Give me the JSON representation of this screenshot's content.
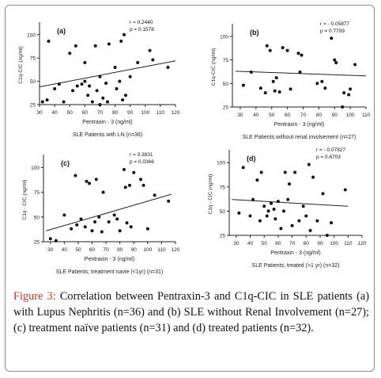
{
  "figure": {
    "label": "Figure 3:",
    "text": " Correlation between Pentraxin-3 and C1q-CIC in SLE patients (a) with Lupus Nephritis (n=36) and (b) SLE without Renal Involvement (n=27); (c) treatment naïve patients (n=31) and (d) treated patients (n=32).",
    "colors": {
      "label": "#c0392b",
      "points": "#111111",
      "regression": "#222222"
    }
  },
  "chart_data": [
    {
      "type": "scatter",
      "panel_label": "(a)",
      "stats": [
        "r = 0.2440",
        "p = 0.1578"
      ],
      "xlabel": "Pentraxin - 3 (ng/ml)",
      "ylabel": "C1q-CIC (ng/ml)",
      "footer": "SLE Patients with LN (n=36)",
      "xlim": [
        30,
        120
      ],
      "ylim": [
        25,
        110
      ],
      "xticks": [
        30,
        40,
        50,
        60,
        70,
        80,
        90,
        100,
        110,
        120
      ],
      "yticks": [
        25,
        50,
        75,
        100
      ],
      "regression": {
        "x": [
          30,
          120
        ],
        "y": [
          44,
          72
        ]
      },
      "points": [
        {
          "x": 32,
          "y": 28
        },
        {
          "x": 35,
          "y": 30
        },
        {
          "x": 36,
          "y": 93
        },
        {
          "x": 40,
          "y": 42
        },
        {
          "x": 43,
          "y": 47
        },
        {
          "x": 46,
          "y": 28
        },
        {
          "x": 50,
          "y": 80
        },
        {
          "x": 52,
          "y": 40
        },
        {
          "x": 54,
          "y": 88
        },
        {
          "x": 55,
          "y": 45
        },
        {
          "x": 58,
          "y": 47
        },
        {
          "x": 60,
          "y": 50
        },
        {
          "x": 60,
          "y": 70
        },
        {
          "x": 62,
          "y": 35
        },
        {
          "x": 63,
          "y": 45
        },
        {
          "x": 65,
          "y": 28
        },
        {
          "x": 67,
          "y": 88
        },
        {
          "x": 68,
          "y": 40
        },
        {
          "x": 70,
          "y": 55
        },
        {
          "x": 70,
          "y": 25
        },
        {
          "x": 72,
          "y": 32
        },
        {
          "x": 74,
          "y": 48
        },
        {
          "x": 75,
          "y": 28
        },
        {
          "x": 76,
          "y": 90
        },
        {
          "x": 80,
          "y": 65
        },
        {
          "x": 81,
          "y": 42
        },
        {
          "x": 83,
          "y": 50
        },
        {
          "x": 84,
          "y": 93
        },
        {
          "x": 85,
          "y": 30
        },
        {
          "x": 86,
          "y": 100
        },
        {
          "x": 87,
          "y": 35
        },
        {
          "x": 90,
          "y": 55
        },
        {
          "x": 95,
          "y": 70
        },
        {
          "x": 103,
          "y": 83
        },
        {
          "x": 105,
          "y": 73
        },
        {
          "x": 115,
          "y": 65
        }
      ]
    },
    {
      "type": "scatter",
      "panel_label": "(b)",
      "stats": [
        "r = - 0.05877",
        "p = 0.7709"
      ],
      "xlabel": "Pentraxin - 3 (ng/ml)",
      "ylabel": "C1q-CIC (ng/ml)",
      "footer": "SLE Patients without renal involvement (n=27)",
      "xlim": [
        25,
        110
      ],
      "ylim": [
        25,
        110
      ],
      "xticks": [
        30,
        40,
        50,
        60,
        70,
        80,
        90,
        100,
        110
      ],
      "yticks": [
        25,
        50,
        75,
        100
      ],
      "regression": {
        "x": [
          27,
          110
        ],
        "y": [
          63,
          58
        ]
      },
      "points": [
        {
          "x": 32,
          "y": 48
        },
        {
          "x": 37,
          "y": 62
        },
        {
          "x": 43,
          "y": 45
        },
        {
          "x": 46,
          "y": 40
        },
        {
          "x": 47,
          "y": 90
        },
        {
          "x": 49,
          "y": 85
        },
        {
          "x": 51,
          "y": 52
        },
        {
          "x": 52,
          "y": 42
        },
        {
          "x": 53,
          "y": 56
        },
        {
          "x": 55,
          "y": 41
        },
        {
          "x": 57,
          "y": 88
        },
        {
          "x": 60,
          "y": 85
        },
        {
          "x": 62,
          "y": 44
        },
        {
          "x": 67,
          "y": 82
        },
        {
          "x": 68,
          "y": 62
        },
        {
          "x": 69,
          "y": 80
        },
        {
          "x": 79,
          "y": 50
        },
        {
          "x": 82,
          "y": 52
        },
        {
          "x": 84,
          "y": 45
        },
        {
          "x": 88,
          "y": 98
        },
        {
          "x": 90,
          "y": 75
        },
        {
          "x": 91,
          "y": 72
        },
        {
          "x": 95,
          "y": 25
        },
        {
          "x": 96,
          "y": 40
        },
        {
          "x": 99,
          "y": 38
        },
        {
          "x": 103,
          "y": 70
        },
        {
          "x": 100,
          "y": 44
        }
      ]
    },
    {
      "type": "scatter",
      "panel_label": "(c)",
      "stats": [
        "r = 0.3831",
        "p = 0.0366"
      ],
      "xlabel": "Pentraxin - 3 (ng/ml)",
      "ylabel": "C1q - CIC (ng/ml)",
      "footer": "SLE Patients; treatment navie (<1yr) (n=31)",
      "xlim": [
        25,
        120
      ],
      "ylim": [
        25,
        110
      ],
      "xticks": [
        30,
        40,
        50,
        60,
        70,
        80,
        90,
        100,
        110,
        120
      ],
      "yticks": [
        25,
        50,
        75,
        100
      ],
      "regression": {
        "x": [
          27,
          117
        ],
        "y": [
          36,
          73
        ]
      },
      "points": [
        {
          "x": 30,
          "y": 28
        },
        {
          "x": 34,
          "y": 26
        },
        {
          "x": 40,
          "y": 52
        },
        {
          "x": 45,
          "y": 38
        },
        {
          "x": 48,
          "y": 92
        },
        {
          "x": 49,
          "y": 42
        },
        {
          "x": 52,
          "y": 48
        },
        {
          "x": 55,
          "y": 40
        },
        {
          "x": 56,
          "y": 86
        },
        {
          "x": 58,
          "y": 84
        },
        {
          "x": 60,
          "y": 36
        },
        {
          "x": 62,
          "y": 45
        },
        {
          "x": 63,
          "y": 88
        },
        {
          "x": 65,
          "y": 50
        },
        {
          "x": 67,
          "y": 35
        },
        {
          "x": 68,
          "y": 75
        },
        {
          "x": 72,
          "y": 45
        },
        {
          "x": 76,
          "y": 52
        },
        {
          "x": 78,
          "y": 48
        },
        {
          "x": 80,
          "y": 36
        },
        {
          "x": 83,
          "y": 98
        },
        {
          "x": 84,
          "y": 80
        },
        {
          "x": 85,
          "y": 44
        },
        {
          "x": 87,
          "y": 82
        },
        {
          "x": 88,
          "y": 40
        },
        {
          "x": 90,
          "y": 95
        },
        {
          "x": 95,
          "y": 88
        },
        {
          "x": 97,
          "y": 82
        },
        {
          "x": 100,
          "y": 38
        },
        {
          "x": 105,
          "y": 72
        },
        {
          "x": 115,
          "y": 66
        }
      ]
    },
    {
      "type": "scatter",
      "panel_label": "(d)",
      "stats": [
        "r = - 0.07827",
        "p = 0.6703"
      ],
      "xlabel": "Pentraxin - 3 (ng/ml)",
      "ylabel": "C1q - CIC (ng/ml)",
      "footer": "SLE Patients; treated (>1 yr) (n=32)",
      "xlim": [
        25,
        120
      ],
      "ylim": [
        25,
        110
      ],
      "xticks": [
        30,
        40,
        50,
        60,
        70,
        80,
        90,
        100,
        110,
        120
      ],
      "yticks": [
        25,
        50,
        75,
        100
      ],
      "regression": {
        "x": [
          27,
          110
        ],
        "y": [
          62,
          55
        ]
      },
      "points": [
        {
          "x": 32,
          "y": 48
        },
        {
          "x": 35,
          "y": 95
        },
        {
          "x": 40,
          "y": 45
        },
        {
          "x": 42,
          "y": 62
        },
        {
          "x": 45,
          "y": 82
        },
        {
          "x": 47,
          "y": 40
        },
        {
          "x": 48,
          "y": 90
        },
        {
          "x": 50,
          "y": 55
        },
        {
          "x": 52,
          "y": 45
        },
        {
          "x": 53,
          "y": 50
        },
        {
          "x": 55,
          "y": 58
        },
        {
          "x": 57,
          "y": 52
        },
        {
          "x": 58,
          "y": 42
        },
        {
          "x": 60,
          "y": 60
        },
        {
          "x": 62,
          "y": 32
        },
        {
          "x": 64,
          "y": 50
        },
        {
          "x": 65,
          "y": 90
        },
        {
          "x": 67,
          "y": 62
        },
        {
          "x": 68,
          "y": 78
        },
        {
          "x": 70,
          "y": 35
        },
        {
          "x": 72,
          "y": 90
        },
        {
          "x": 75,
          "y": 40
        },
        {
          "x": 78,
          "y": 55
        },
        {
          "x": 80,
          "y": 45
        },
        {
          "x": 82,
          "y": 98
        },
        {
          "x": 83,
          "y": 30
        },
        {
          "x": 85,
          "y": 85
        },
        {
          "x": 88,
          "y": 40
        },
        {
          "x": 92,
          "y": 68
        },
        {
          "x": 95,
          "y": 25
        },
        {
          "x": 98,
          "y": 38
        },
        {
          "x": 108,
          "y": 72
        }
      ]
    }
  ]
}
